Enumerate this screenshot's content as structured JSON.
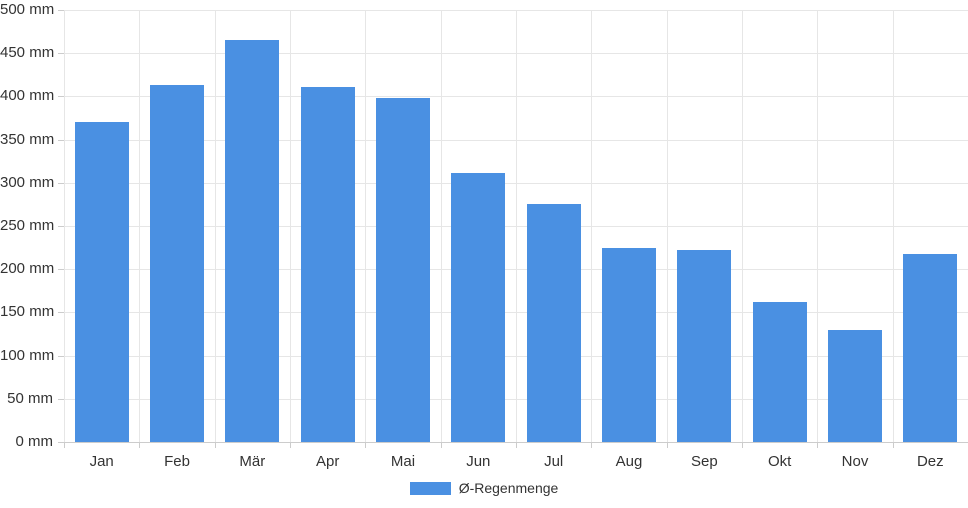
{
  "chart_data": {
    "type": "bar",
    "title": "",
    "categories": [
      "Jan",
      "Feb",
      "Mär",
      "Apr",
      "Mai",
      "Jun",
      "Jul",
      "Aug",
      "Sep",
      "Okt",
      "Nov",
      "Dez"
    ],
    "values": [
      370,
      413,
      465,
      411,
      398,
      311,
      275,
      224,
      222,
      162,
      130,
      218
    ],
    "series_name": "Ø-Regenmenge",
    "unit": "mm",
    "xlabel": "",
    "ylabel": "",
    "ylim": [
      0,
      500
    ],
    "y_tick_step": 50,
    "y_ticks": [
      "0 mm",
      "50 mm",
      "100 mm",
      "150 mm",
      "200 mm",
      "250 mm",
      "300 mm",
      "350 mm",
      "400 mm",
      "450 mm",
      "500 mm"
    ],
    "grid": "on",
    "legend_position": "bottom-center",
    "colors": {
      "bar": "#4a90e2",
      "gridline": "#e6e6e6",
      "axis_line": "#cccccc",
      "label_text": "#333333",
      "background": "#ffffff"
    },
    "legend": {
      "label": "Ø-Regenmenge"
    }
  }
}
